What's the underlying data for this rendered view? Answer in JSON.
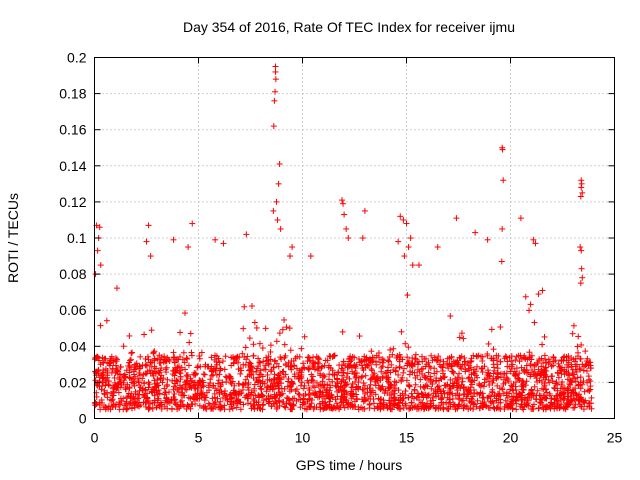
{
  "chart_data": {
    "type": "scatter",
    "title": "Day 354 of 2016, Rate Of TEC Index for receiver ijmu",
    "xlabel": "GPS time / hours",
    "ylabel": "ROTI / TECUs",
    "xlim": [
      0,
      25
    ],
    "ylim": [
      0,
      0.2
    ],
    "xticks": [
      0,
      5,
      10,
      15,
      20,
      25
    ],
    "xtick_labels": [
      "0",
      "5",
      "10",
      "15",
      "20",
      "25"
    ],
    "yticks": [
      0,
      0.02,
      0.04,
      0.06,
      0.08,
      0.1,
      0.12,
      0.14,
      0.16,
      0.18,
      0.2
    ],
    "ytick_labels": [
      "0",
      "0.02",
      "0.04",
      "0.06",
      "0.08",
      "0.1",
      "0.12",
      "0.14",
      "0.16",
      "0.18",
      "0.2"
    ],
    "grid": true,
    "marker": "+",
    "color": "#ff0000",
    "series": [
      {
        "name": "ROTI",
        "x_range": [
          0,
          23.9
        ],
        "baseline_range": [
          0.005,
          0.035
        ],
        "notable_points": [
          {
            "x": 8.7,
            "y": 0.195
          },
          {
            "x": 8.7,
            "y": 0.192
          },
          {
            "x": 8.72,
            "y": 0.188
          },
          {
            "x": 8.68,
            "y": 0.181
          },
          {
            "x": 8.65,
            "y": 0.176
          },
          {
            "x": 8.62,
            "y": 0.162
          },
          {
            "x": 8.9,
            "y": 0.141
          },
          {
            "x": 8.85,
            "y": 0.13
          },
          {
            "x": 8.75,
            "y": 0.12
          },
          {
            "x": 8.6,
            "y": 0.115
          },
          {
            "x": 8.8,
            "y": 0.11
          },
          {
            "x": 8.95,
            "y": 0.105
          },
          {
            "x": 19.6,
            "y": 0.15
          },
          {
            "x": 19.62,
            "y": 0.149
          },
          {
            "x": 19.65,
            "y": 0.132
          },
          {
            "x": 19.6,
            "y": 0.105
          },
          {
            "x": 19.58,
            "y": 0.087
          },
          {
            "x": 23.4,
            "y": 0.132
          },
          {
            "x": 23.42,
            "y": 0.13
          },
          {
            "x": 23.4,
            "y": 0.128
          },
          {
            "x": 23.45,
            "y": 0.125
          },
          {
            "x": 23.38,
            "y": 0.123
          },
          {
            "x": 23.35,
            "y": 0.095
          },
          {
            "x": 23.4,
            "y": 0.093
          },
          {
            "x": 23.42,
            "y": 0.083
          },
          {
            "x": 23.45,
            "y": 0.078
          },
          {
            "x": 23.38,
            "y": 0.075
          },
          {
            "x": 11.9,
            "y": 0.121
          },
          {
            "x": 11.95,
            "y": 0.119
          },
          {
            "x": 12.0,
            "y": 0.113
          },
          {
            "x": 12.1,
            "y": 0.105
          },
          {
            "x": 12.2,
            "y": 0.1
          },
          {
            "x": 13.0,
            "y": 0.115
          },
          {
            "x": 12.9,
            "y": 0.1
          },
          {
            "x": 14.7,
            "y": 0.112
          },
          {
            "x": 14.85,
            "y": 0.11
          },
          {
            "x": 15.0,
            "y": 0.108
          },
          {
            "x": 15.2,
            "y": 0.1
          },
          {
            "x": 14.6,
            "y": 0.098
          },
          {
            "x": 15.1,
            "y": 0.095
          },
          {
            "x": 14.9,
            "y": 0.09
          },
          {
            "x": 15.3,
            "y": 0.085
          },
          {
            "x": 0.1,
            "y": 0.107
          },
          {
            "x": 0.25,
            "y": 0.106
          },
          {
            "x": 0.2,
            "y": 0.1
          },
          {
            "x": 0.15,
            "y": 0.093
          },
          {
            "x": 0.3,
            "y": 0.085
          },
          {
            "x": 0.05,
            "y": 0.08
          },
          {
            "x": 2.6,
            "y": 0.107
          },
          {
            "x": 2.5,
            "y": 0.098
          },
          {
            "x": 2.7,
            "y": 0.09
          },
          {
            "x": 4.7,
            "y": 0.108
          },
          {
            "x": 4.5,
            "y": 0.095
          },
          {
            "x": 3.8,
            "y": 0.099
          },
          {
            "x": 5.8,
            "y": 0.099
          },
          {
            "x": 6.2,
            "y": 0.097
          },
          {
            "x": 7.3,
            "y": 0.102
          },
          {
            "x": 20.5,
            "y": 0.111
          },
          {
            "x": 21.1,
            "y": 0.099
          },
          {
            "x": 21.2,
            "y": 0.097
          },
          {
            "x": 17.4,
            "y": 0.111
          },
          {
            "x": 18.3,
            "y": 0.103
          },
          {
            "x": 18.9,
            "y": 0.099
          },
          {
            "x": 9.5,
            "y": 0.095
          },
          {
            "x": 9.4,
            "y": 0.09
          },
          {
            "x": 10.4,
            "y": 0.09
          },
          {
            "x": 16.5,
            "y": 0.095
          },
          {
            "x": 15.6,
            "y": 0.085
          }
        ]
      }
    ]
  }
}
